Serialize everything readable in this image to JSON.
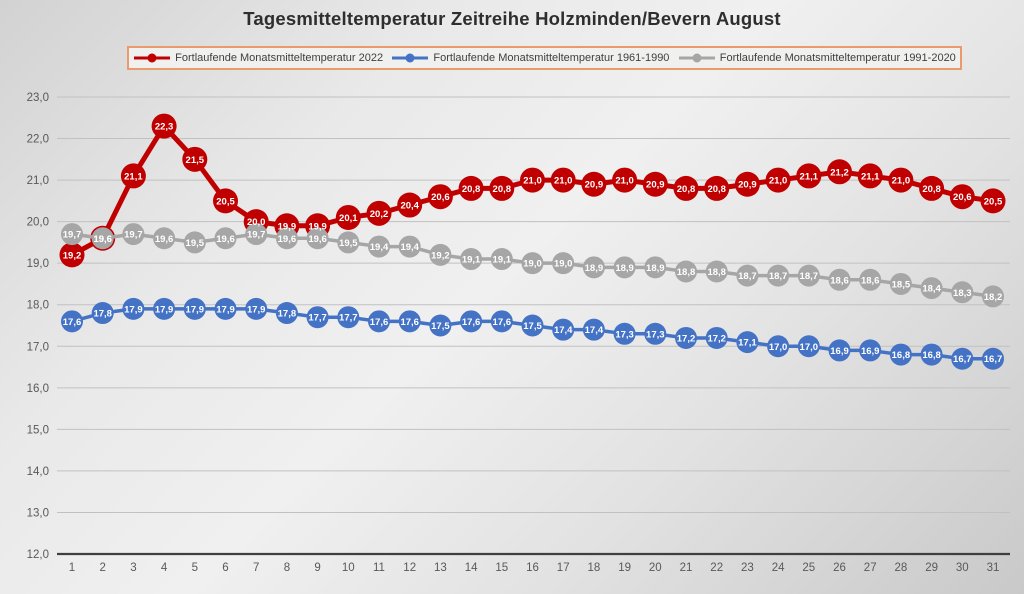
{
  "title": "Tagesmitteltemperatur Zeitreihe Holzminden/Bevern August",
  "chart_data": {
    "type": "line",
    "title": "Tagesmitteltemperatur Zeitreihe Holzminden/Bevern August",
    "xlabel": "",
    "ylabel": "",
    "categories": [
      1,
      2,
      3,
      4,
      5,
      6,
      7,
      8,
      9,
      10,
      11,
      12,
      13,
      14,
      15,
      16,
      17,
      18,
      19,
      20,
      21,
      22,
      23,
      24,
      25,
      26,
      27,
      28,
      29,
      30,
      31
    ],
    "series": [
      {
        "name": "Fortlaufende Monatsmitteltemperatur 2022",
        "color": "#c00000",
        "values": [
          19.2,
          19.6,
          21.1,
          22.3,
          21.5,
          20.5,
          20.0,
          19.9,
          19.9,
          20.1,
          20.2,
          20.4,
          20.6,
          20.8,
          20.8,
          21.0,
          21.0,
          20.9,
          21.0,
          20.9,
          20.8,
          20.8,
          20.9,
          21.0,
          21.1,
          21.2,
          21.1,
          21.0,
          20.8,
          20.6,
          20.5
        ]
      },
      {
        "name": "Fortlaufende Monatsmitteltemperatur 1961-1990",
        "color": "#4472c4",
        "values": [
          17.6,
          17.8,
          17.9,
          17.9,
          17.9,
          17.9,
          17.9,
          17.8,
          17.7,
          17.7,
          17.6,
          17.6,
          17.5,
          17.6,
          17.6,
          17.5,
          17.4,
          17.4,
          17.3,
          17.3,
          17.2,
          17.2,
          17.1,
          17.0,
          17.0,
          16.9,
          16.9,
          16.8,
          16.8,
          16.7,
          16.7
        ]
      },
      {
        "name": "Fortlaufende Monatsmitteltemperatur 1991-2020",
        "color": "#a6a6a6",
        "values": [
          19.7,
          19.6,
          19.7,
          19.6,
          19.5,
          19.6,
          19.7,
          19.6,
          19.6,
          19.5,
          19.4,
          19.4,
          19.2,
          19.1,
          19.1,
          19.0,
          19.0,
          18.9,
          18.9,
          18.9,
          18.8,
          18.8,
          18.7,
          18.7,
          18.7,
          18.6,
          18.6,
          18.5,
          18.4,
          18.3,
          18.2
        ]
      }
    ],
    "ylim": [
      12,
      23
    ],
    "ytick_step": 1,
    "ytick_labels": [
      "12,0",
      "13,0",
      "14,0",
      "15,0",
      "16,0",
      "17,0",
      "18,0",
      "19,0",
      "20,0",
      "21,0",
      "22,0",
      "23,0"
    ],
    "decimal_separator": ",",
    "grid": true,
    "data_labels": true,
    "legend_position": "top",
    "legend_border_color": "#ec9a6d"
  }
}
